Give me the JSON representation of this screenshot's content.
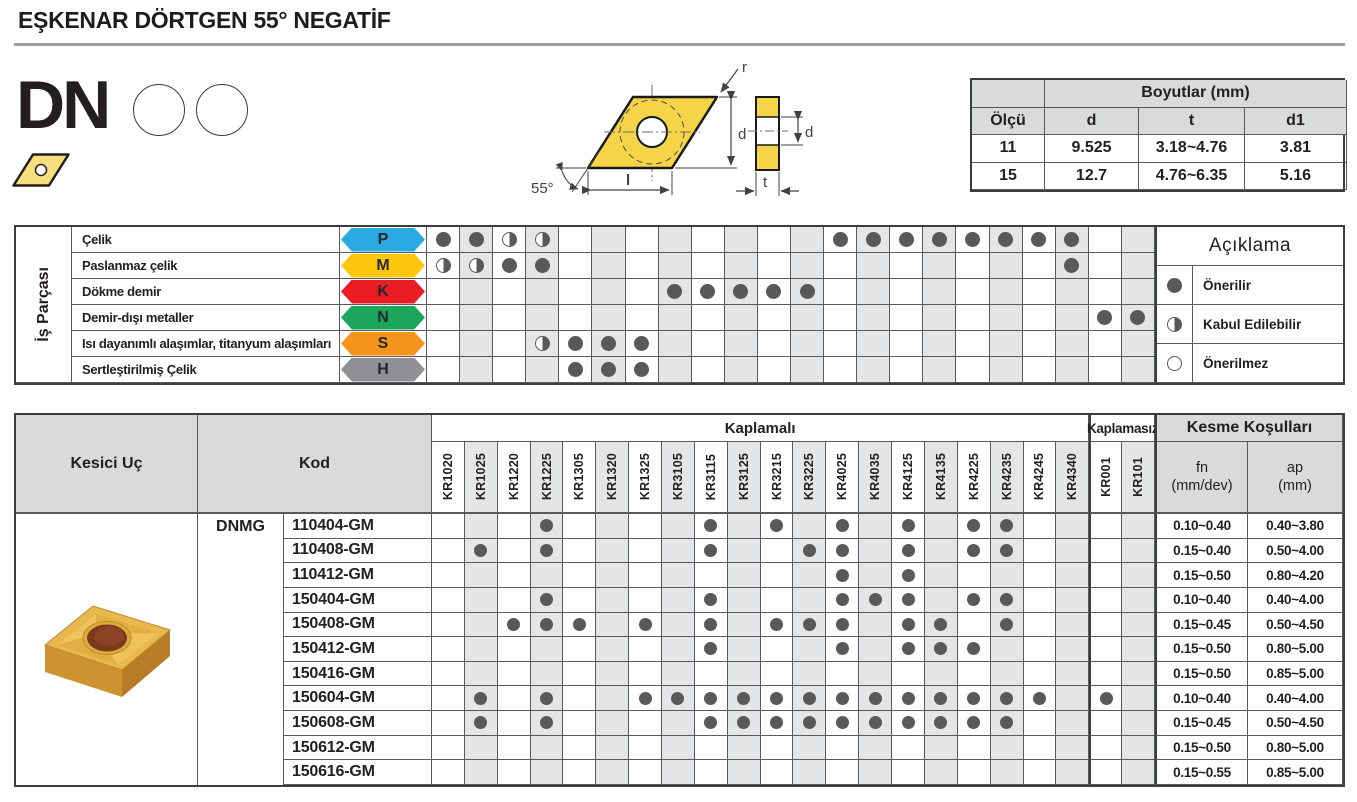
{
  "header": {
    "title": "EŞKENAR DÖRTGEN 55° NEGATİF"
  },
  "profile": {
    "code": "DN"
  },
  "drawing": {
    "angle": "55°",
    "r": "r",
    "d": "d",
    "l": "l",
    "t": "t",
    "d_side": "d"
  },
  "dimensions_table": {
    "title": "Boyutlar (mm)",
    "size_col": "Ölçü",
    "cols": [
      "d",
      "t",
      "d1"
    ],
    "rows": [
      {
        "size": "11",
        "d": "9.525",
        "t": "3.18~4.76",
        "d1": "3.81"
      },
      {
        "size": "15",
        "d": "12.7",
        "t": "4.76~6.35",
        "d1": "5.16"
      }
    ]
  },
  "grades": {
    "coated": [
      "KR1020",
      "KR1025",
      "KR1220",
      "KR1225",
      "KR1305",
      "KR1320",
      "KR1325",
      "KR3105",
      "KR3115",
      "KR3125",
      "KR3215",
      "KR3225",
      "KR4025",
      "KR4035",
      "KR4125",
      "KR4135",
      "KR4225",
      "KR4235",
      "KR4245",
      "KR4340"
    ],
    "uncoated": [
      "KR001",
      "KR101"
    ]
  },
  "materials_table": {
    "side_label": "İş Parçası",
    "rows": [
      {
        "name": "Çelik",
        "letter": "P",
        "color": "#29ABE2",
        "marks": {
          "KR1020": "full",
          "KR1025": "full",
          "KR1220": "half",
          "KR1225": "half",
          "KR4025": "full",
          "KR4035": "full",
          "KR4125": "full",
          "KR4135": "full",
          "KR4225": "full",
          "KR4235": "full",
          "KR4245": "full",
          "KR4340": "full"
        }
      },
      {
        "name": "Paslanmaz çelik",
        "letter": "M",
        "color": "#FFC60B",
        "marks": {
          "KR1020": "half",
          "KR1025": "half",
          "KR1220": "full",
          "KR1225": "full",
          "KR4340": "full"
        }
      },
      {
        "name": "Dökme demir",
        "letter": "K",
        "color": "#EC1C24",
        "marks": {
          "KR3105": "full",
          "KR3115": "full",
          "KR3125": "full",
          "KR3215": "full",
          "KR3225": "full"
        }
      },
      {
        "name": "Demir-dışı metaller",
        "letter": "N",
        "color": "#1CA65B",
        "marks": {
          "KR001": "full",
          "KR101": "full"
        }
      },
      {
        "name": "Isı dayanımlı alaşımlar, titanyum alaşımları",
        "letter": "S",
        "color": "#F7941D",
        "marks": {
          "KR1225": "half",
          "KR1305": "full",
          "KR1320": "full",
          "KR1325": "full"
        }
      },
      {
        "name": "Sertleştirilmiş Çelik",
        "letter": "H",
        "color": "#8E9093",
        "marks": {
          "KR1305": "full",
          "KR1320": "full",
          "KR1325": "full"
        }
      }
    ]
  },
  "legend": {
    "title": "Açıklama",
    "items": [
      {
        "mark": "full",
        "label": "Önerilir"
      },
      {
        "mark": "half",
        "label": "Kabul Edilebilir"
      },
      {
        "mark": "empty",
        "label": "Önerilmez"
      }
    ]
  },
  "products_table": {
    "insert_col": "Kesici Uç",
    "code_col": "Kod",
    "coated_label": "Kaplamalı",
    "uncoated_label": "Kaplamasız",
    "cutting_label": "Kesme Koşulları",
    "fn_label": "fn",
    "fn_unit": "(mm/dev)",
    "ap_label": "ap",
    "ap_unit": "(mm)",
    "series": "DNMG",
    "rows": [
      {
        "code": "110404-GM",
        "grades": [
          "KR1225",
          "KR3115",
          "KR3215",
          "KR4025",
          "KR4125",
          "KR4225",
          "KR4235"
        ],
        "fn": "0.10~0.40",
        "ap": "0.40~3.80"
      },
      {
        "code": "110408-GM",
        "grades": [
          "KR1025",
          "KR1225",
          "KR3115",
          "KR3225",
          "KR4025",
          "KR4125",
          "KR4225",
          "KR4235"
        ],
        "fn": "0.15~0.40",
        "ap": "0.50~4.00"
      },
      {
        "code": "110412-GM",
        "grades": [
          "KR4025",
          "KR4125"
        ],
        "fn": "0.15~0.50",
        "ap": "0.80~4.20"
      },
      {
        "code": "150404-GM",
        "grades": [
          "KR1225",
          "KR3115",
          "KR4025",
          "KR4035",
          "KR4125",
          "KR4225",
          "KR4235"
        ],
        "fn": "0.10~0.40",
        "ap": "0.40~4.00"
      },
      {
        "code": "150408-GM",
        "grades": [
          "KR1220",
          "KR1225",
          "KR1305",
          "KR1325",
          "KR3115",
          "KR3215",
          "KR3225",
          "KR4025",
          "KR4125",
          "KR4135",
          "KR4235"
        ],
        "fn": "0.15~0.45",
        "ap": "0.50~4.50"
      },
      {
        "code": "150412-GM",
        "grades": [
          "KR3115",
          "KR4025",
          "KR4125",
          "KR4135",
          "KR4225"
        ],
        "fn": "0.15~0.50",
        "ap": "0.80~5.00"
      },
      {
        "code": "150416-GM",
        "grades": [],
        "fn": "0.15~0.50",
        "ap": "0.85~5.00"
      },
      {
        "code": "150604-GM",
        "grades": [
          "KR1025",
          "KR1225",
          "KR1325",
          "KR3105",
          "KR3115",
          "KR3125",
          "KR3215",
          "KR3225",
          "KR4025",
          "KR4035",
          "KR4125",
          "KR4135",
          "KR4225",
          "KR4235",
          "KR4245",
          "KR001"
        ],
        "fn": "0.10~0.40",
        "ap": "0.40~4.00"
      },
      {
        "code": "150608-GM",
        "grades": [
          "KR1025",
          "KR1225",
          "KR3115",
          "KR3125",
          "KR3215",
          "KR3225",
          "KR4025",
          "KR4035",
          "KR4125",
          "KR4135",
          "KR4225",
          "KR4235"
        ],
        "fn": "0.15~0.45",
        "ap": "0.50~4.50"
      },
      {
        "code": "150612-GM",
        "grades": [],
        "fn": "0.15~0.50",
        "ap": "0.80~5.00"
      },
      {
        "code": "150616-GM",
        "grades": [],
        "fn": "0.15~0.55",
        "ap": "0.85~5.00"
      }
    ]
  },
  "colors": {
    "dot": "#58595B",
    "alt_column": "#E4E5E6",
    "header_fill": "#D9DADC",
    "insert_yellow": "#F5D547"
  }
}
